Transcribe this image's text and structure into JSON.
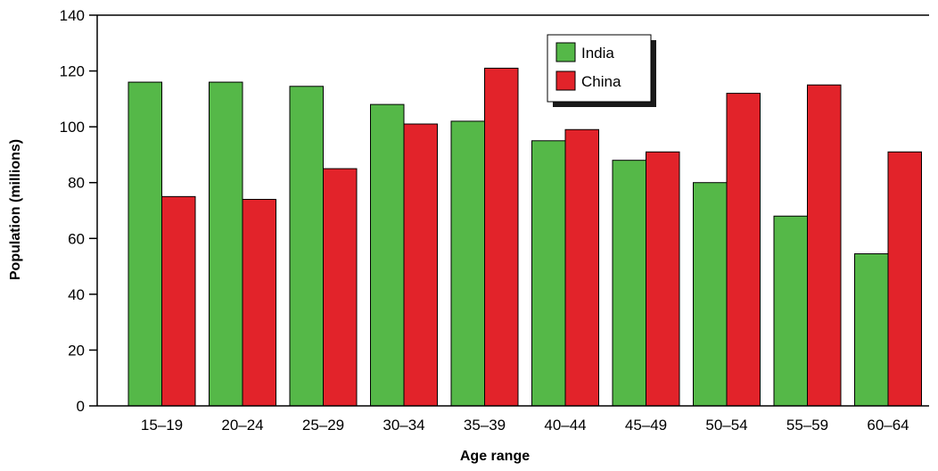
{
  "chart_data": {
    "type": "bar",
    "title": "",
    "xlabel": "Age range",
    "ylabel": "Population (millions)",
    "categories": [
      "15–19",
      "20–24",
      "25–29",
      "30–34",
      "35–39",
      "40–44",
      "45–49",
      "50–54",
      "55–59",
      "60–64"
    ],
    "series": [
      {
        "name": "India",
        "color": "#55b848",
        "values": [
          116,
          116,
          114.5,
          108,
          102,
          95,
          88,
          80,
          68,
          54.5
        ]
      },
      {
        "name": "China",
        "color": "#e2232a",
        "values": [
          75,
          74,
          85,
          101,
          121,
          99,
          91,
          112,
          115,
          91
        ]
      }
    ],
    "ylim": [
      0,
      140
    ],
    "yticks": [
      0,
      20,
      40,
      60,
      80,
      100,
      120,
      140
    ],
    "grid": false,
    "legend_position": "top-center"
  }
}
